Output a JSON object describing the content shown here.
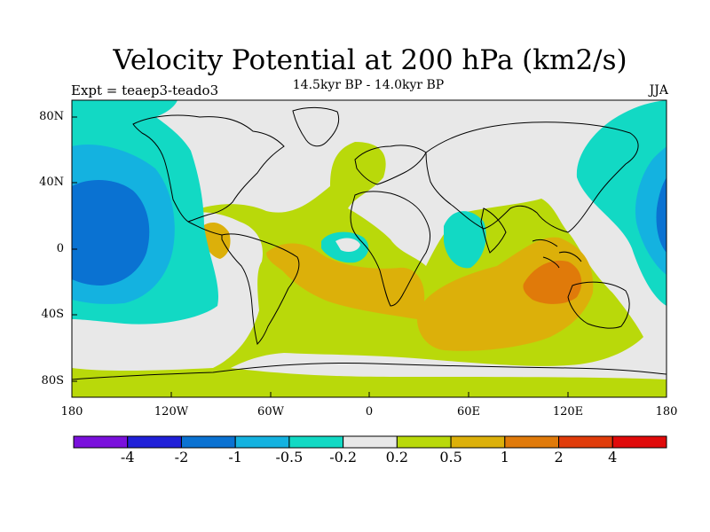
{
  "title": "Velocity Potential at 200 hPa (km2/s)",
  "subtitle": "14.5kyr BP - 14.0kyr BP",
  "left_label": "Expt = teaep3-teado3",
  "right_label": "JJA",
  "lat_labels": [
    "80N",
    "40N",
    "0",
    "40S",
    "80S"
  ],
  "lon_labels": [
    "180",
    "120W",
    "60W",
    "0",
    "60E",
    "120E",
    "180"
  ],
  "colorbar": {
    "colors": [
      "#7a10dc",
      "#2020d8",
      "#0a72d2",
      "#14b2e0",
      "#12d9c4",
      "#e8e8e8",
      "#b9d90a",
      "#dcb00a",
      "#e07a0a",
      "#e03c0a",
      "#e00a0a"
    ],
    "labels": [
      "-4",
      "-2",
      "-1",
      "-0.5",
      "-0.2",
      "0.2",
      "0.5",
      "1",
      "2",
      "4"
    ]
  },
  "map": {
    "lat_range": [
      -90,
      90
    ],
    "lon_range": [
      -180,
      180
    ],
    "background_color": "#e8e8e8"
  }
}
